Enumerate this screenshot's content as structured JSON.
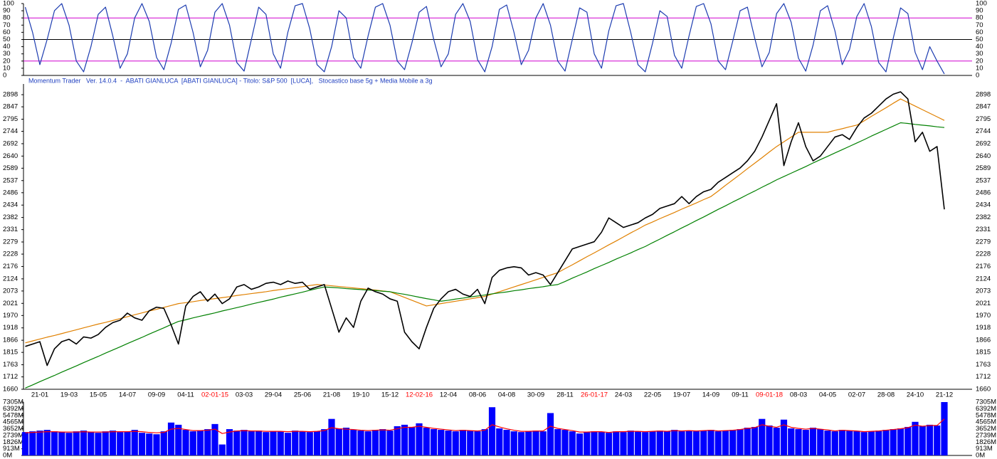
{
  "caption": "Momentum Trader   Ver. 14.0.4  -  ABATI GIANLUCA  [ABATI GIANLUCA] - Titolo: S&P 500  [LUCA],   Stocastico base 5g + Media Mobile a 3g",
  "chart_data": [
    {
      "type": "line",
      "ylim": [
        0,
        100
      ],
      "yticks": [
        0,
        10,
        20,
        30,
        40,
        50,
        60,
        70,
        80,
        90,
        100
      ],
      "hlines": [
        {
          "value": 80,
          "color": "#d000d0"
        },
        {
          "value": 50,
          "color": "#000000"
        },
        {
          "value": 20,
          "color": "#d000d0"
        }
      ],
      "series": [
        {
          "color": "#1c3cb0",
          "values": [
            95,
            60,
            15,
            50,
            90,
            100,
            70,
            20,
            5,
            40,
            85,
            95,
            55,
            10,
            30,
            80,
            100,
            75,
            25,
            8,
            45,
            92,
            98,
            60,
            12,
            35,
            88,
            100,
            70,
            18,
            6,
            50,
            95,
            85,
            30,
            10,
            60,
            97,
            100,
            65,
            15,
            5,
            40,
            90,
            80,
            25,
            10,
            55,
            95,
            100,
            70,
            20,
            8,
            45,
            88,
            96,
            50,
            12,
            30,
            85,
            100,
            75,
            22,
            5,
            40,
            92,
            98,
            60,
            15,
            35,
            80,
            100,
            70,
            20,
            6,
            50,
            94,
            88,
            30,
            10,
            62,
            97,
            100,
            60,
            15,
            5,
            45,
            90,
            82,
            28,
            10,
            55,
            96,
            100,
            72,
            20,
            8,
            48,
            90,
            95,
            52,
            12,
            32,
            86,
            100,
            74,
            24,
            6,
            42,
            90,
            97,
            62,
            15,
            36,
            82,
            100,
            68,
            18,
            5,
            52,
            94,
            86,
            32,
            8,
            40,
            20,
            2
          ]
        }
      ]
    },
    {
      "type": "line",
      "ylim": [
        1660,
        2943
      ],
      "yticks": [
        1660,
        1712,
        1763,
        1815,
        1866,
        1918,
        1970,
        2021,
        2073,
        2124,
        2176,
        2228,
        2279,
        2331,
        2382,
        2434,
        2486,
        2537,
        2589,
        2640,
        2692,
        2744,
        2795,
        2847,
        2898
      ],
      "categories": [
        null,
        null,
        "21-01",
        null,
        null,
        null,
        "19-03",
        null,
        null,
        null,
        "15-05",
        null,
        null,
        null,
        "14-07",
        null,
        null,
        null,
        "09-09",
        null,
        null,
        null,
        "04-11",
        null,
        null,
        null,
        "02-01-15",
        null,
        null,
        null,
        "03-03",
        null,
        null,
        null,
        "29-04",
        null,
        null,
        null,
        "25-06",
        null,
        null,
        null,
        "21-08",
        null,
        null,
        null,
        "19-10",
        null,
        null,
        null,
        "15-12",
        null,
        null,
        null,
        "12-02-16",
        null,
        null,
        null,
        "12-04",
        null,
        null,
        null,
        "08-06",
        null,
        null,
        null,
        "04-08",
        null,
        null,
        null,
        "30-09",
        null,
        null,
        null,
        "28-11",
        null,
        null,
        null,
        "26-01-17",
        null,
        null,
        null,
        "24-03",
        null,
        null,
        null,
        "22-05",
        null,
        null,
        null,
        "19-07",
        null,
        null,
        null,
        "14-09",
        null,
        null,
        null,
        "09-11",
        null,
        null,
        null,
        "09-01-18",
        null,
        null,
        null,
        "08-03",
        null,
        null,
        null,
        "04-05",
        null,
        null,
        null,
        "02-07",
        null,
        null,
        null,
        "28-08",
        null,
        null,
        null,
        "24-10",
        null,
        null,
        null,
        "21-12"
      ],
      "year_label_color": "#ff0000",
      "series": [
        {
          "color": "#e08000",
          "values": [
            1855,
            1863,
            1871,
            1879,
            1886,
            1894,
            1902,
            1910,
            1918,
            1926,
            1934,
            1941,
            1949,
            1957,
            1965,
            1973,
            1981,
            1989,
            1996,
            2004,
            2012,
            2020,
            2024,
            2028,
            2033,
            2037,
            2041,
            2045,
            2049,
            2054,
            2058,
            2062,
            2066,
            2070,
            2075,
            2079,
            2083,
            2087,
            2091,
            2096,
            2100,
            2098,
            2095,
            2092,
            2089,
            2086,
            2083,
            2080,
            2077,
            2073,
            2070,
            2058,
            2046,
            2034,
            2022,
            2010,
            2015,
            2020,
            2025,
            2030,
            2035,
            2040,
            2045,
            2050,
            2060,
            2070,
            2080,
            2090,
            2100,
            2110,
            2120,
            2130,
            2140,
            2150,
            2167,
            2183,
            2200,
            2217,
            2233,
            2250,
            2267,
            2283,
            2300,
            2317,
            2333,
            2350,
            2363,
            2377,
            2390,
            2403,
            2417,
            2430,
            2443,
            2457,
            2470,
            2493,
            2517,
            2540,
            2563,
            2587,
            2610,
            2633,
            2657,
            2680,
            2700,
            2720,
            2740,
            2740,
            2740,
            2740,
            2740,
            2748,
            2755,
            2763,
            2770,
            2788,
            2807,
            2825,
            2843,
            2862,
            2880,
            2865,
            2850,
            2835,
            2820,
            2805,
            2790
          ]
        },
        {
          "color": "#008000",
          "values": [
            1665,
            1678,
            1692,
            1705,
            1718,
            1732,
            1745,
            1758,
            1772,
            1785,
            1798,
            1812,
            1825,
            1838,
            1852,
            1865,
            1878,
            1892,
            1905,
            1918,
            1932,
            1945,
            1952,
            1960,
            1967,
            1974,
            1981,
            1989,
            1996,
            2003,
            2010,
            2018,
            2025,
            2032,
            2039,
            2047,
            2054,
            2061,
            2068,
            2076,
            2083,
            2090,
            2088,
            2086,
            2083,
            2081,
            2079,
            2077,
            2075,
            2072,
            2070,
            2064,
            2059,
            2053,
            2047,
            2041,
            2036,
            2030,
            2034,
            2039,
            2043,
            2048,
            2052,
            2056,
            2061,
            2065,
            2069,
            2074,
            2078,
            2083,
            2087,
            2091,
            2096,
            2100,
            2113,
            2127,
            2140,
            2153,
            2167,
            2180,
            2193,
            2207,
            2220,
            2233,
            2247,
            2260,
            2276,
            2291,
            2307,
            2322,
            2338,
            2353,
            2369,
            2384,
            2400,
            2416,
            2431,
            2447,
            2462,
            2478,
            2493,
            2509,
            2524,
            2540,
            2554,
            2568,
            2582,
            2596,
            2611,
            2625,
            2639,
            2653,
            2667,
            2681,
            2695,
            2709,
            2724,
            2738,
            2752,
            2766,
            2780,
            2777,
            2773,
            2770,
            2767,
            2763,
            2760
          ]
        },
        {
          "color": "#000000",
          "values": [
            1840,
            1850,
            1860,
            1760,
            1830,
            1860,
            1870,
            1850,
            1880,
            1875,
            1890,
            1920,
            1940,
            1950,
            1980,
            1960,
            1950,
            1990,
            2005,
            2000,
            1930,
            1850,
            2010,
            2050,
            2070,
            2030,
            2060,
            2020,
            2040,
            2090,
            2100,
            2080,
            2090,
            2105,
            2110,
            2100,
            2115,
            2105,
            2110,
            2080,
            2090,
            2100,
            2000,
            1900,
            1960,
            1920,
            2030,
            2085,
            2070,
            2060,
            2040,
            2030,
            1900,
            1860,
            1830,
            1920,
            2000,
            2040,
            2070,
            2080,
            2060,
            2050,
            2080,
            2020,
            2130,
            2160,
            2170,
            2175,
            2170,
            2140,
            2150,
            2140,
            2100,
            2150,
            2200,
            2250,
            2260,
            2270,
            2280,
            2320,
            2380,
            2360,
            2340,
            2350,
            2360,
            2380,
            2395,
            2420,
            2430,
            2440,
            2470,
            2440,
            2470,
            2490,
            2500,
            2530,
            2550,
            2570,
            2590,
            2620,
            2660,
            2720,
            2790,
            2860,
            2600,
            2700,
            2780,
            2680,
            2620,
            2640,
            2680,
            2720,
            2730,
            2710,
            2760,
            2800,
            2820,
            2850,
            2880,
            2900,
            2910,
            2880,
            2700,
            2740,
            2660,
            2680,
            2416
          ]
        }
      ]
    },
    {
      "type": "bar",
      "ylim": [
        0,
        7305
      ],
      "yticks": [
        {
          "value": 0,
          "label": "0M"
        },
        {
          "value": 913,
          "label": "913M"
        },
        {
          "value": 1826,
          "label": "1826M"
        },
        {
          "value": 2739,
          "label": "2739M"
        },
        {
          "value": 3652,
          "label": "3652M"
        },
        {
          "value": 4565,
          "label": "4565M"
        },
        {
          "value": 5478,
          "label": "5478M"
        },
        {
          "value": 6392,
          "label": "6392M"
        },
        {
          "value": 7305,
          "label": "7305M"
        }
      ],
      "series": [
        {
          "color": "#0000ff",
          "values": [
            3200,
            3300,
            3400,
            3500,
            3300,
            3200,
            3100,
            3300,
            3400,
            3200,
            3100,
            3300,
            3400,
            3200,
            3300,
            3500,
            3100,
            3000,
            2900,
            3300,
            4500,
            4200,
            3500,
            3300,
            3400,
            3600,
            4300,
            1500,
            3600,
            3400,
            3500,
            3300,
            3400,
            3200,
            3300,
            3300,
            3100,
            3400,
            3300,
            3200,
            3300,
            3600,
            5000,
            3700,
            3800,
            3500,
            3400,
            3300,
            3500,
            3600,
            3400,
            4000,
            4200,
            3900,
            4400,
            3800,
            3600,
            3500,
            3400,
            3300,
            3500,
            3400,
            3300,
            3600,
            6600,
            3700,
            3500,
            3300,
            3200,
            3300,
            3400,
            3300,
            5800,
            3600,
            3500,
            3300,
            3000,
            3200,
            3300,
            3200,
            3100,
            3300,
            3200,
            3400,
            3300,
            3200,
            3300,
            3400,
            3300,
            3500,
            3300,
            3400,
            3300,
            3400,
            3500,
            3300,
            3400,
            3500,
            3600,
            3800,
            3900,
            5000,
            4100,
            3800,
            4900,
            3700,
            3600,
            3500,
            3800,
            3600,
            3400,
            3300,
            3500,
            3400,
            3300,
            3200,
            3300,
            3400,
            3500,
            3600,
            3700,
            3900,
            4600,
            4000,
            4200,
            4100,
            7305
          ]
        },
        {
          "color": "#ff0000",
          "mark": "line",
          "values": [
            3100,
            3150,
            3200,
            3250,
            3250,
            3200,
            3200,
            3200,
            3250,
            3200,
            3200,
            3200,
            3250,
            3250,
            3250,
            3300,
            3250,
            3150,
            3100,
            3150,
            3600,
            3700,
            3550,
            3400,
            3400,
            3450,
            3600,
            3000,
            3200,
            3350,
            3400,
            3350,
            3350,
            3300,
            3300,
            3300,
            3250,
            3300,
            3300,
            3250,
            3300,
            3400,
            3800,
            3650,
            3600,
            3550,
            3450,
            3400,
            3450,
            3500,
            3450,
            3650,
            3850,
            3850,
            4000,
            3850,
            3700,
            3600,
            3500,
            3400,
            3450,
            3400,
            3350,
            3450,
            4200,
            3900,
            3650,
            3450,
            3300,
            3300,
            3350,
            3350,
            4000,
            3700,
            3550,
            3400,
            3200,
            3200,
            3250,
            3250,
            3150,
            3250,
            3250,
            3300,
            3300,
            3250,
            3300,
            3350,
            3300,
            3400,
            3350,
            3400,
            3350,
            3400,
            3450,
            3350,
            3400,
            3450,
            3550,
            3700,
            3800,
            4200,
            4000,
            3850,
            4200,
            3850,
            3700,
            3600,
            3700,
            3600,
            3500,
            3350,
            3450,
            3400,
            3350,
            3250,
            3300,
            3350,
            3450,
            3550,
            3650,
            3800,
            4150,
            4000,
            4100,
            4100,
            5000
          ]
        }
      ]
    }
  ]
}
